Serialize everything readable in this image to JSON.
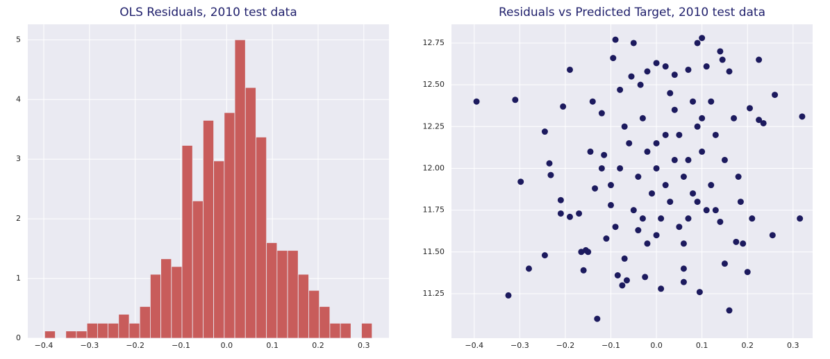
{
  "chart_data": [
    {
      "type": "histogram",
      "title": "OLS Residuals, 2010 test data",
      "color": "#c85c5b",
      "grid": true,
      "bins": [
        -0.398,
        -0.3749,
        -0.3518,
        -0.3287,
        -0.3056,
        -0.2825,
        -0.2594,
        -0.2363,
        -0.2132,
        -0.1901,
        -0.167,
        -0.1439,
        -0.1208,
        -0.0977,
        -0.0746,
        -0.0515,
        -0.0284,
        -0.0053,
        0.0178,
        0.0409,
        0.064,
        0.0871,
        0.1102,
        0.1333,
        0.1564,
        0.1795,
        0.2026,
        0.2257,
        0.2488,
        0.2719,
        0.295,
        0.3181
      ],
      "values": [
        0.12,
        0,
        0.12,
        0.12,
        0.25,
        0.25,
        0.25,
        0.4,
        0.25,
        0.53,
        1.07,
        1.33,
        1.2,
        3.23,
        2.3,
        3.65,
        2.97,
        3.78,
        5.0,
        4.2,
        3.37,
        1.6,
        1.47,
        1.47,
        1.07,
        0.8,
        0.53,
        0.25,
        0.25,
        0,
        0.25
      ],
      "xlim": [
        -0.435,
        0.355
      ],
      "xticks": [
        {
          "value": -0.4,
          "label": "−0.4"
        },
        {
          "value": -0.3,
          "label": "−0.3"
        },
        {
          "value": -0.2,
          "label": "−0.2"
        },
        {
          "value": -0.1,
          "label": "−0.1"
        },
        {
          "value": 0,
          "label": "0.0"
        },
        0.1,
        0.2,
        0.3
      ],
      "ylim": [
        0,
        5.26
      ],
      "yticks": [
        0,
        1,
        2,
        3,
        4,
        5
      ]
    },
    {
      "type": "scatter",
      "title": "Residuals vs Predicted Target, 2010 test data",
      "color": "#1c1a5e",
      "grid": true,
      "x": [
        -0.395,
        -0.31,
        -0.298,
        -0.28,
        -0.325,
        -0.245,
        -0.245,
        -0.235,
        -0.232,
        -0.21,
        -0.21,
        -0.205,
        -0.19,
        -0.19,
        -0.17,
        -0.165,
        -0.16,
        -0.155,
        -0.15,
        -0.145,
        -0.14,
        -0.135,
        -0.13,
        -0.12,
        -0.115,
        -0.11,
        -0.1,
        -0.095,
        -0.09,
        -0.085,
        -0.08,
        -0.075,
        -0.07,
        -0.065,
        -0.055,
        -0.05,
        -0.04,
        -0.035,
        -0.025,
        -0.02,
        0.0,
        0.01,
        0.02,
        0.04,
        0.06,
        0.06,
        0.07,
        0.09,
        0.095,
        0.1,
        0.11,
        0.14,
        0.145,
        0.15,
        0.16,
        0.16,
        0.17,
        0.2,
        0.205,
        0.225,
        0.225,
        0.235,
        0.255,
        0.26,
        0.315,
        0.32,
        0.19,
        0.185,
        0.21,
        0.18,
        0.175,
        0.14,
        0.13,
        0.0,
        0.02,
        -0.02,
        0.05,
        0.03,
        -0.04,
        0.07,
        -0.06,
        0.08,
        0.01,
        -0.03,
        0.04,
        0.06,
        -0.01,
        0.1,
        0.12,
        -0.08,
        -0.1,
        0.09,
        0.11,
        -0.05,
        0.02,
        0.05,
        -0.07,
        0.0,
        0.07,
        0.03,
        -0.02,
        0.08,
        0.13,
        -0.09,
        0.15,
        -0.12,
        0.06,
        0.1,
        0.04,
        -0.03,
        0.12,
        0.0,
        0.09
      ],
      "values": [
        12.4,
        12.41,
        11.92,
        11.4,
        11.24,
        12.22,
        11.48,
        12.03,
        11.96,
        11.81,
        11.73,
        12.37,
        12.59,
        11.71,
        11.73,
        11.5,
        11.39,
        11.51,
        11.5,
        12.1,
        12.4,
        11.88,
        11.1,
        12.33,
        12.08,
        11.58,
        11.78,
        12.66,
        12.77,
        11.36,
        12.47,
        11.3,
        11.46,
        11.33,
        12.55,
        12.75,
        11.63,
        12.5,
        11.35,
        12.58,
        12.63,
        11.28,
        12.61,
        12.56,
        11.32,
        11.4,
        12.59,
        12.75,
        11.26,
        12.78,
        12.61,
        12.7,
        12.65,
        11.43,
        12.58,
        11.15,
        12.3,
        11.38,
        12.36,
        12.65,
        12.29,
        12.27,
        11.6,
        12.44,
        11.7,
        12.31,
        11.55,
        11.8,
        11.7,
        11.95,
        11.56,
        11.68,
        11.75,
        12.0,
        11.9,
        12.1,
        12.2,
        11.8,
        11.95,
        12.05,
        12.15,
        11.85,
        11.7,
        12.3,
        12.35,
        11.95,
        11.85,
        12.1,
        11.9,
        12.0,
        11.9,
        12.25,
        11.75,
        11.75,
        12.2,
        11.65,
        12.25,
        11.6,
        11.7,
        12.45,
        11.55,
        12.4,
        12.2,
        11.65,
        12.05,
        12.0,
        11.55,
        12.3,
        12.05,
        11.7,
        12.4,
        12.15,
        11.8
      ],
      "xlim": [
        -0.45,
        0.343
      ],
      "xticks": [
        {
          "value": -0.4,
          "label": "−0.4"
        },
        {
          "value": -0.3,
          "label": "−0.3"
        },
        {
          "value": -0.2,
          "label": "−0.2"
        },
        {
          "value": -0.1,
          "label": "−0.1"
        },
        {
          "value": 0,
          "label": "0.0"
        },
        0.1,
        0.2,
        0.3
      ],
      "ylim": [
        10.984,
        12.862
      ],
      "yticks": [
        11.25,
        {
          "value": 11.5,
          "label": "11.50"
        },
        11.75,
        {
          "value": 12,
          "label": "12.00"
        },
        12.25,
        {
          "value": 12.5,
          "label": "12.50"
        },
        12.75
      ]
    }
  ]
}
